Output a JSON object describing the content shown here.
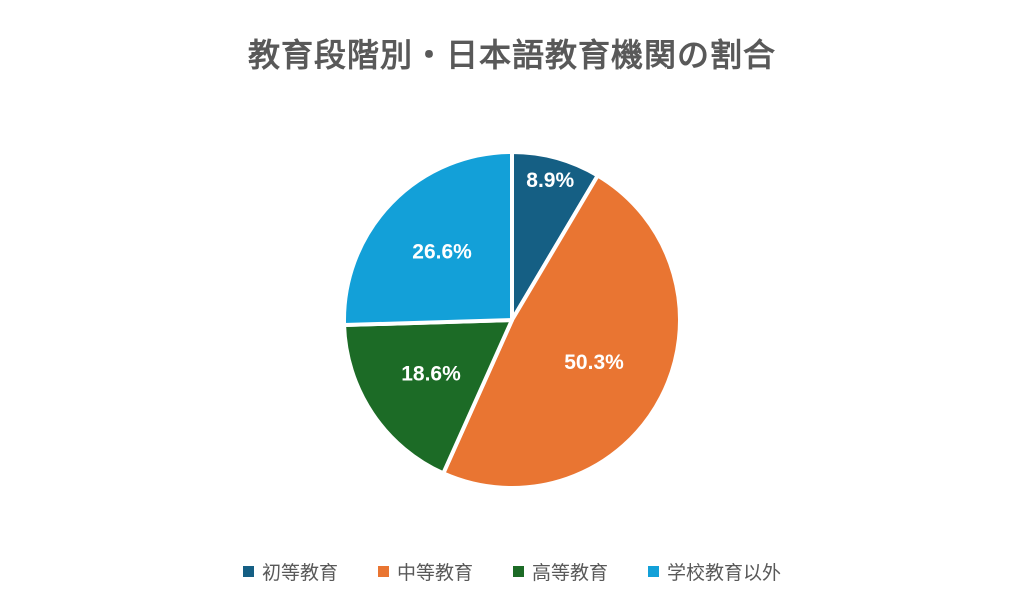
{
  "chart_data": {
    "type": "pie",
    "title": "教育段階別・日本語教育機関の割合",
    "categories": [
      "初等教育",
      "中等教育",
      "高等教育",
      "学校教育以外"
    ],
    "values": [
      8.9,
      50.3,
      18.6,
      26.6
    ],
    "labels": [
      "8.9%",
      "50.3%",
      "18.6%",
      "26.6%"
    ],
    "colors": [
      "#155f84",
      "#e97532",
      "#1c6b26",
      "#13a0d8"
    ],
    "legend_position": "bottom",
    "start_angle": "12 o'clock",
    "direction": "clockwise"
  }
}
